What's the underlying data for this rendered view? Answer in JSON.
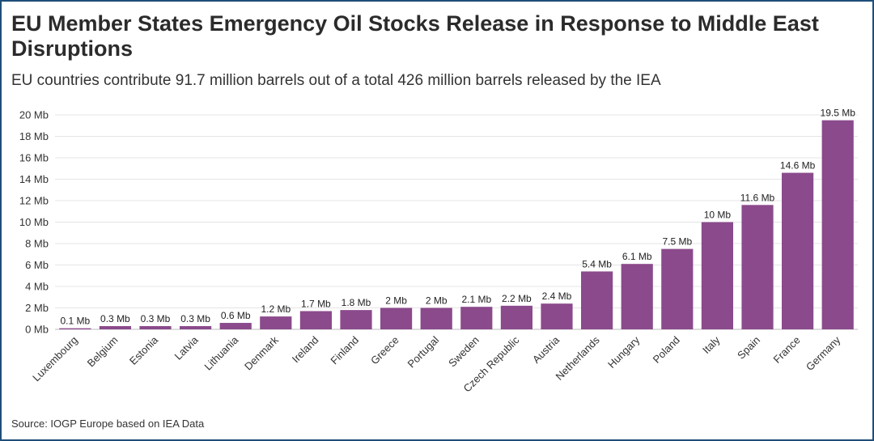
{
  "header": {
    "title": "EU Member States Emergency Oil Stocks Release in Response to Middle East Disruptions",
    "subtitle": "EU countries contribute 91.7 million barrels out of a total 426 million barrels released by the IEA"
  },
  "footer": {
    "source": "Source: IOGP Europe based on IEA Data"
  },
  "colors": {
    "bar": "#8b4a8c",
    "grid": "#e4e4e4",
    "axis": "#bdbdbd"
  },
  "chart_data": {
    "type": "bar",
    "categories": [
      "Luxembourg",
      "Belgium",
      "Estonia",
      "Latvia",
      "Lithuania",
      "Denmark",
      "Ireland",
      "Finland",
      "Greece",
      "Portugal",
      "Sweden",
      "Czech Republic",
      "Austria",
      "Netherlands",
      "Hungary",
      "Poland",
      "Italy",
      "Spain",
      "France",
      "Germany"
    ],
    "values": [
      0.1,
      0.3,
      0.3,
      0.3,
      0.6,
      1.2,
      1.7,
      1.8,
      2,
      2,
      2.1,
      2.2,
      2.4,
      5.4,
      6.1,
      7.5,
      10,
      11.6,
      14.6,
      19.5
    ],
    "data_labels": [
      "0.1 Mb",
      "0.3 Mb",
      "0.3 Mb",
      "0.3 Mb",
      "0.6 Mb",
      "1.2 Mb",
      "1.7 Mb",
      "1.8 Mb",
      "2 Mb",
      "2 Mb",
      "2.1 Mb",
      "2.2 Mb",
      "2.4 Mb",
      "5.4 Mb",
      "6.1 Mb",
      "7.5 Mb",
      "10 Mb",
      "11.6 Mb",
      "14.6 Mb",
      "19.5 Mb"
    ],
    "y_ticks": [
      0,
      2,
      4,
      6,
      8,
      10,
      12,
      14,
      16,
      18,
      20
    ],
    "y_tick_labels": [
      "0 Mb",
      "2 Mb",
      "4 Mb",
      "6 Mb",
      "8 Mb",
      "10 Mb",
      "12 Mb",
      "14 Mb",
      "16 Mb",
      "18 Mb",
      "20 Mb"
    ],
    "ylim": [
      0,
      20
    ],
    "grid": true,
    "legend": "none",
    "xlabel": "",
    "ylabel": ""
  }
}
